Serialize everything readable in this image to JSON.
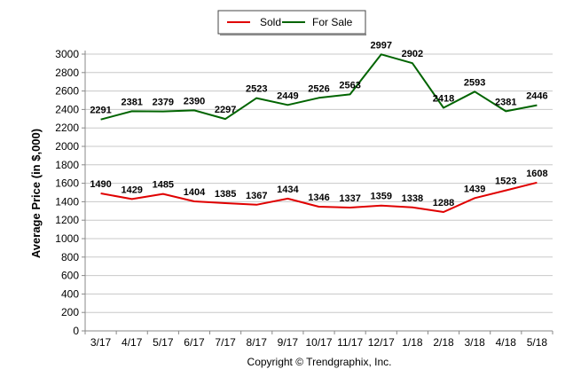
{
  "chart_data": {
    "type": "line",
    "title": "",
    "xlabel": "",
    "ylabel": "Average Price (in $,000)",
    "ylim": [
      0,
      3000
    ],
    "ytick_step": 200,
    "grid": true,
    "legend_position": "top-center",
    "categories": [
      "3/17",
      "4/17",
      "5/17",
      "6/17",
      "7/17",
      "8/17",
      "9/17",
      "10/17",
      "11/17",
      "12/17",
      "1/18",
      "2/18",
      "3/18",
      "4/18",
      "5/18"
    ],
    "series": [
      {
        "name": "Sold",
        "color": "#e00000",
        "values": [
          1490,
          1429,
          1485,
          1404,
          1385,
          1367,
          1434,
          1346,
          1337,
          1359,
          1338,
          1288,
          1439,
          1523,
          1608
        ]
      },
      {
        "name": "For Sale",
        "color": "#006400",
        "values": [
          2291,
          2381,
          2379,
          2390,
          2297,
          2523,
          2449,
          2526,
          2563,
          2997,
          2902,
          2418,
          2593,
          2381,
          2446
        ]
      }
    ]
  },
  "footer": {
    "copyright": "Copyright © Trendgraphix, Inc."
  }
}
